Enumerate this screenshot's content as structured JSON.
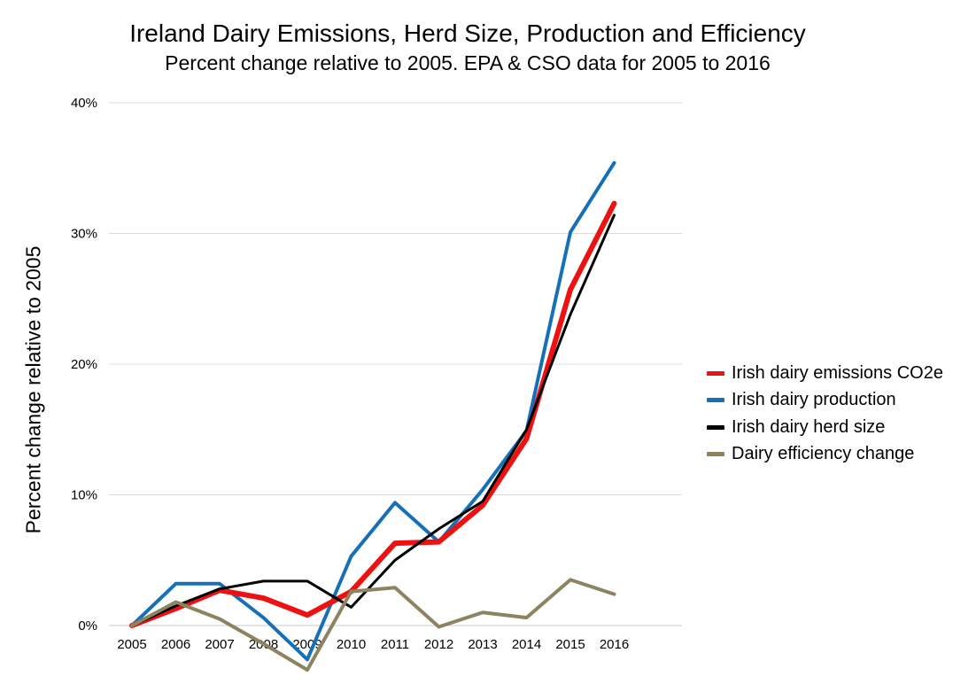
{
  "chart_data": {
    "type": "line",
    "title": "Ireland Dairy Emissions, Herd Size, Production and Efficiency",
    "subtitle": "Percent change relative to 2005. EPA & CSO data for 2005 to 2016",
    "xlabel": "",
    "ylabel": "Percent change relative to 2005",
    "x": [
      "2005",
      "2006",
      "2007",
      "2008",
      "2009",
      "2010",
      "2011",
      "2012",
      "2013",
      "2014",
      "2015",
      "2016"
    ],
    "ylim": [
      0,
      40
    ],
    "yticks": [
      0,
      10,
      20,
      30,
      40
    ],
    "ytick_labels": [
      "0%",
      "10%",
      "20%",
      "30%",
      "40%"
    ],
    "grid": true,
    "legend_position": "right",
    "series": [
      {
        "name": "Irish dairy emissions CO2e",
        "color": "#ee1111",
        "width": 6,
        "values": [
          0,
          1.3,
          2.7,
          2.1,
          0.8,
          2.6,
          6.3,
          6.4,
          9.2,
          14.3,
          25.7,
          32.3
        ]
      },
      {
        "name": "Irish dairy production",
        "color": "#1670b8",
        "width": 4,
        "values": [
          0,
          3.2,
          3.2,
          0.6,
          -2.6,
          5.3,
          9.4,
          6.4,
          10.4,
          14.9,
          30.1,
          35.4
        ]
      },
      {
        "name": "Irish dairy herd size",
        "color": "#000000",
        "width": 3,
        "values": [
          0,
          1.5,
          2.8,
          3.4,
          3.4,
          1.4,
          5.0,
          7.4,
          9.5,
          15.0,
          23.8,
          31.4
        ]
      },
      {
        "name": "Dairy efficiency change",
        "color": "#8c8360",
        "width": 4,
        "values": [
          0,
          1.8,
          0.5,
          -1.4,
          -3.4,
          2.6,
          2.9,
          -0.1,
          1.0,
          0.6,
          3.5,
          2.4
        ]
      }
    ]
  }
}
